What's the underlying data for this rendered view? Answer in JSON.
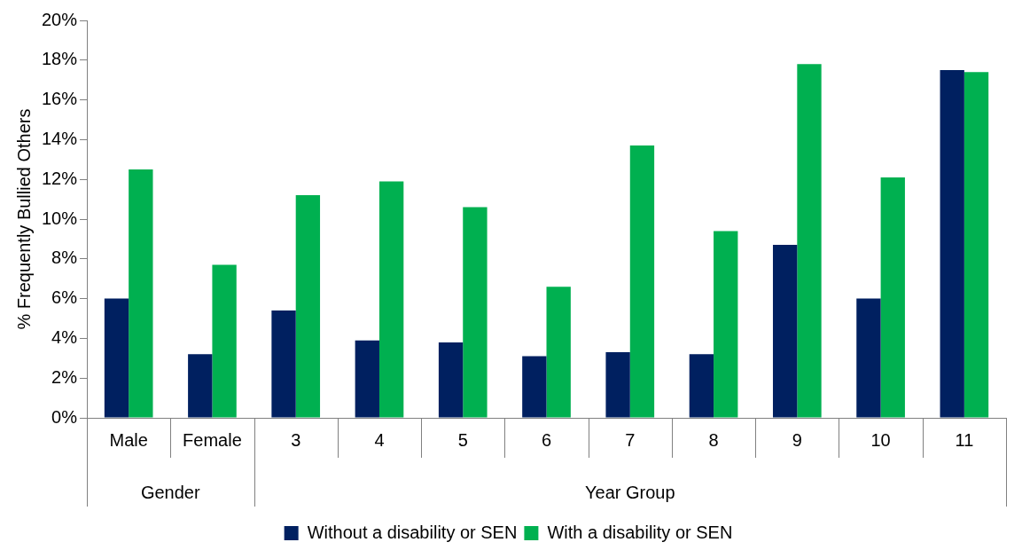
{
  "chart_data": {
    "type": "bar",
    "ylabel": "% Frequently Bullied Others",
    "categories": [
      "Male",
      "Female",
      "3",
      "4",
      "5",
      "6",
      "7",
      "8",
      "9",
      "10",
      "11"
    ],
    "series": [
      {
        "name": "Without a disability or SEN",
        "color": "#002060",
        "values": [
          6.0,
          3.2,
          5.4,
          3.9,
          3.8,
          3.1,
          3.3,
          3.2,
          8.7,
          6.0,
          17.5
        ]
      },
      {
        "name": "With a disability or SEN",
        "color": "#00b050",
        "values": [
          12.5,
          7.7,
          11.2,
          11.9,
          10.6,
          6.6,
          13.7,
          9.4,
          17.8,
          12.1,
          17.4
        ]
      }
    ],
    "ylim": [
      0,
      20
    ],
    "yticks": [
      {
        "value": 0,
        "label": "0%"
      },
      {
        "value": 2,
        "label": "2%"
      },
      {
        "value": 4,
        "label": "4%"
      },
      {
        "value": 6,
        "label": "6%"
      },
      {
        "value": 8,
        "label": "8%"
      },
      {
        "value": 10,
        "label": "10%"
      },
      {
        "value": 12,
        "label": "12%"
      },
      {
        "value": 14,
        "label": "14%"
      },
      {
        "value": 16,
        "label": "16%"
      },
      {
        "value": 18,
        "label": "18%"
      },
      {
        "value": 20,
        "label": "20%"
      }
    ],
    "annotations": [
      "Gender",
      "Year Group"
    ],
    "grid": false,
    "legend": "bottom"
  }
}
